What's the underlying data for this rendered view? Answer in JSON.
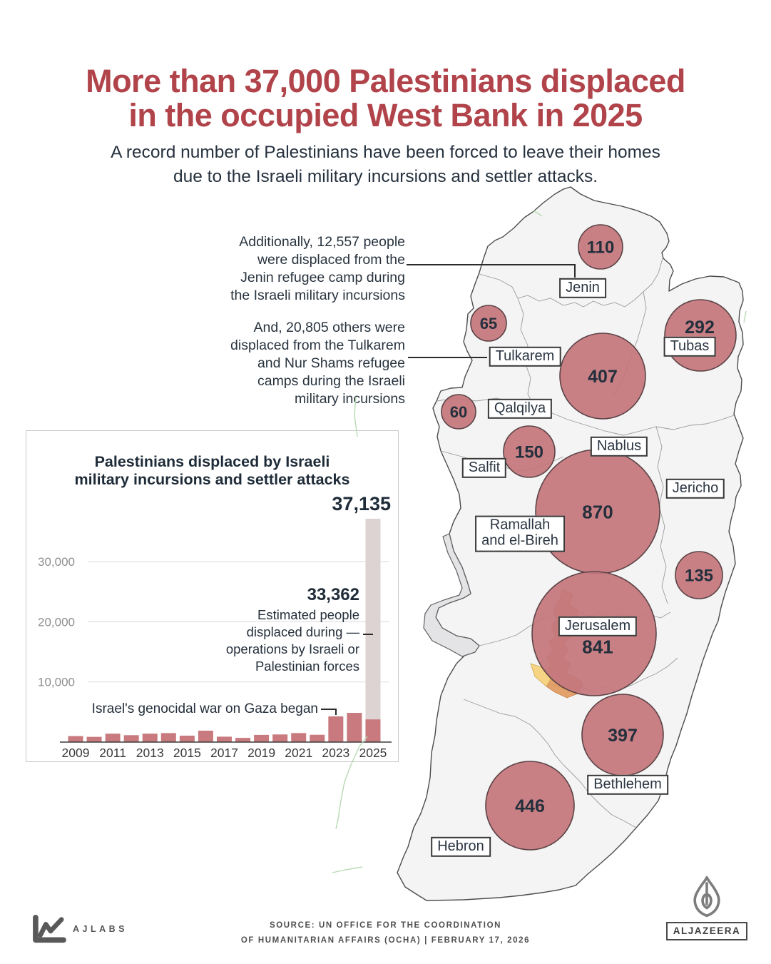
{
  "colors": {
    "title_red": "#b1434a",
    "bar": "#c97a7e",
    "bar_light": "#ddd3d2",
    "bubble_fill": "#c4767c",
    "bubble_stroke": "#5b4346",
    "map_fill": "#f4f4f5",
    "map_stroke": "#4c4c4c",
    "dark_text": "#1e2b38",
    "green_line": "#b5d7b0",
    "orange_area": "#df9354",
    "yellow_area": "#f6d483"
  },
  "header": {
    "title_lines": [
      "More than 37,000 Palestinians displaced",
      "in the occupied West Bank in 2025"
    ],
    "subtitle_lines": [
      "A record number of Palestinians have been forced to leave their homes",
      "due to the Israeli military incursions and settler attacks."
    ]
  },
  "notes": {
    "jenin_lines": [
      "Additionally, 12,557 people",
      "were displaced from the",
      "Jenin refugee camp during",
      "the Israeli military incursions"
    ],
    "tulkarem_lines": [
      "And, 20,805 others were",
      "displaced from the Tulkarem",
      "and Nur Shams refugee",
      "camps during the Israeli",
      "military incursions"
    ]
  },
  "chart_data": [
    {
      "type": "bar",
      "title_lines": [
        "Palestinians displaced by Israeli",
        "military incursions and settler attacks"
      ],
      "categories": [
        2009,
        2010,
        2011,
        2012,
        2013,
        2014,
        2015,
        2016,
        2017,
        2018,
        2019,
        2020,
        2021,
        2022,
        2023,
        2024,
        2025
      ],
      "series": [
        {
          "name": "Displaced by Israeli military incursions and settler attacks",
          "values": [
            1000,
            870,
            1400,
            1150,
            1400,
            1500,
            1070,
            1900,
            900,
            700,
            1200,
            1270,
            1500,
            1220,
            4270,
            4860,
            3773
          ]
        },
        {
          "name": "Estimated people displaced during operations by Israeli or Palestinian forces",
          "values": [
            0,
            0,
            0,
            0,
            0,
            0,
            0,
            0,
            0,
            0,
            0,
            0,
            0,
            0,
            0,
            0,
            33362
          ]
        }
      ],
      "total_2025_label": "37,135",
      "ops_2025_label": "33,362",
      "ops_note_lines": [
        "Estimated people",
        "displaced during —",
        "operations by Israeli or",
        "Palestinian forces"
      ],
      "gaza_note": "Israel's genocidal war on Gaza began",
      "ytick_labels": [
        "10,000",
        "20,000",
        "30,000"
      ],
      "xtick_labels": [
        "2009",
        "2011",
        "2013",
        "2015",
        "2017",
        "2019",
        "2021",
        "2023",
        "2025"
      ],
      "ylim": [
        0,
        40000
      ],
      "grid": true,
      "legend_position": "none"
    },
    {
      "type": "map-bubbles",
      "regions": [
        {
          "id": "jenin",
          "name": "Jenin",
          "value": 110
        },
        {
          "id": "tulkarem",
          "name": "Tulkarem",
          "value": 65
        },
        {
          "id": "tubas",
          "name": "Tubas",
          "value": 292
        },
        {
          "id": "nablus",
          "name": "Nablus",
          "value": 407
        },
        {
          "id": "qalqilya",
          "name": "Qalqilya",
          "value": 60
        },
        {
          "id": "salfit",
          "name": "Salfit",
          "value": 150
        },
        {
          "id": "ramallah",
          "name": "Ramallah and el-Bireh",
          "name_lines": [
            "Ramallah",
            "and el-Bireh"
          ],
          "value": 870
        },
        {
          "id": "jericho",
          "name": "Jericho",
          "value": 135
        },
        {
          "id": "jerusalem",
          "name": "Jerusalem",
          "value": 841
        },
        {
          "id": "bethlehem",
          "name": "Bethlehem",
          "value": 397
        },
        {
          "id": "hebron",
          "name": "Hebron",
          "value": 446
        }
      ]
    }
  ],
  "footer": {
    "ajlabs_label": "AJLABS",
    "source_lines": [
      "SOURCE:  UN OFFICE FOR THE COORDINATION",
      "OF HUMANITARIAN AFFAIRS (OCHA)  |  FEBRUARY 17, 2026"
    ],
    "aljazeera_label": "ALJAZEERA"
  }
}
